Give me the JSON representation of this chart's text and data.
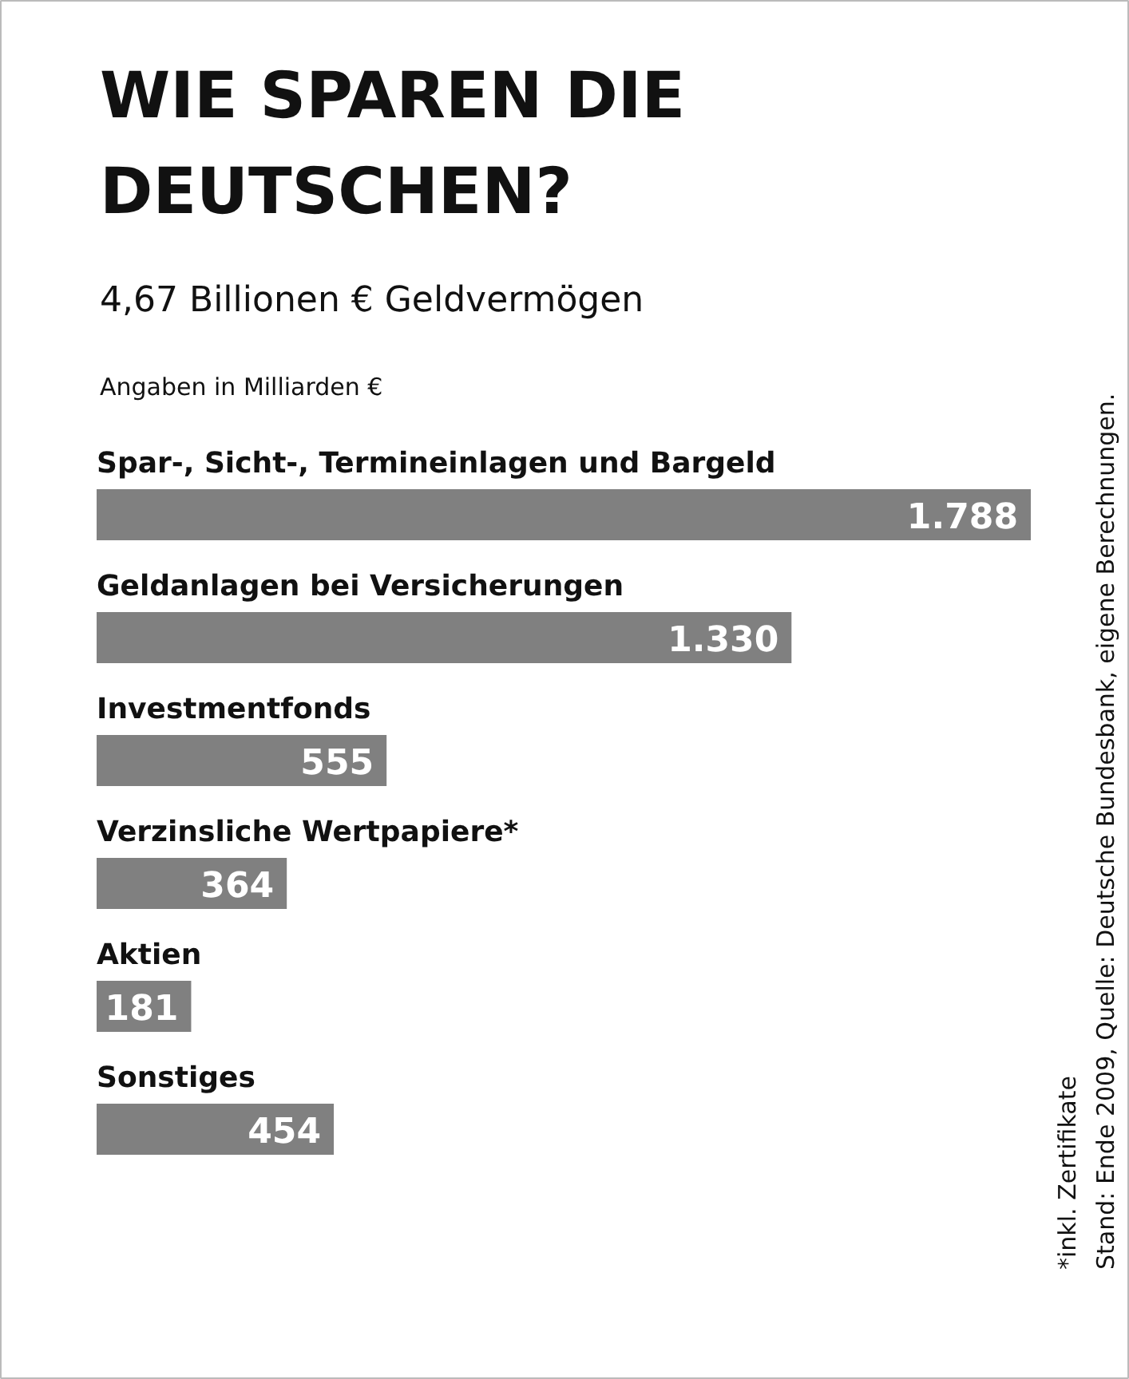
{
  "chart_data": {
    "type": "bar",
    "orientation": "horizontal",
    "title": "WIE SPAREN DIE DEUTSCHEN?",
    "subtitle": "4,67 Billionen € Geldvermögen",
    "categories": [
      "Spar-, Sicht-, Termineinlagen und Bargeld",
      "Geldanlagen bei Versicherungen",
      "Investmentfonds",
      "Verzinsliche Wertpapiere*",
      "Aktien",
      "Sonstiges"
    ],
    "values": [
      1788,
      1330,
      555,
      364,
      181,
      454
    ],
    "value_labels": [
      "1.788",
      "1.330",
      "555",
      "364",
      "181",
      "454"
    ],
    "color": "#808080",
    "annotations": [
      "Angaben in Milliarden €",
      "*inkl. Zertifikate",
      "Stand: Ende 2009, Quelle: Deutsche Bundesbank, eigene Berechnungen."
    ]
  }
}
